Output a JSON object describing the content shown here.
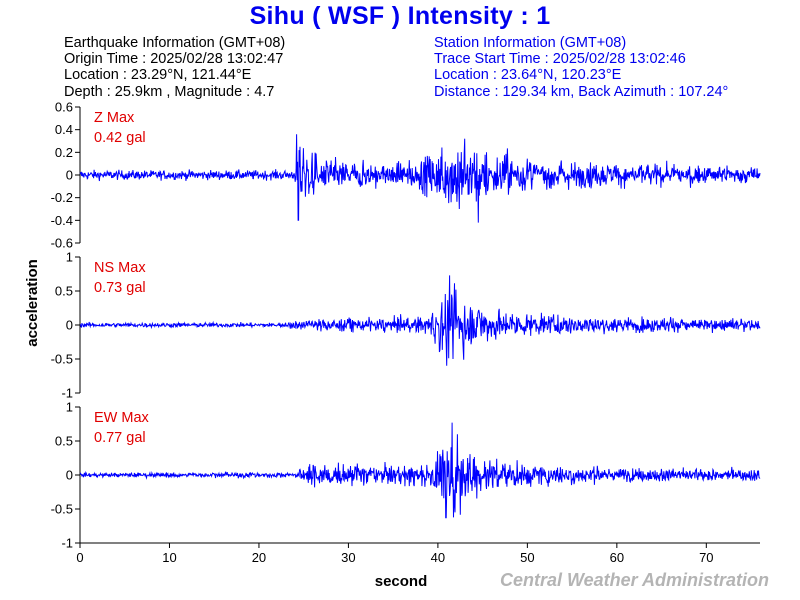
{
  "title": "Sihu  ( WSF )  Intensity : 1",
  "earthquake": {
    "heading": "Earthquake Information  (GMT+08)",
    "origin_time": "Origin Time : 2025/02/28 13:02:47",
    "location": "Location : 23.29°N, 121.44°E",
    "depth_magnitude": "Depth : 25.9km , Magnitude : 4.7"
  },
  "station": {
    "heading": "Station Information  (GMT+08)",
    "trace_start": "Trace Start Time : 2025/02/28 13:02:46",
    "location": "Location : 23.64°N, 120.23°E",
    "distance_azimuth": "Distance : 129.34 km, Back Azimuth : 107.24°"
  },
  "credit": "Central Weather Administration",
  "colors": {
    "title": "#0000ee",
    "trace": "#0000ff",
    "max_label": "#e00000",
    "credit": "#b4b4b4"
  },
  "chart_data": {
    "type": "line",
    "xlabel": "second",
    "ylabel": "acceleration",
    "xlim": [
      0,
      76
    ],
    "x_ticks": [
      0,
      10,
      20,
      30,
      40,
      50,
      60,
      70
    ],
    "grid": false,
    "panels": [
      {
        "name": "Z Max",
        "max_value": "0.42 gal",
        "ylim": [
          -0.6,
          0.6
        ],
        "y_ticks": [
          -0.6,
          -0.4,
          -0.2,
          0,
          0.2,
          0.4,
          0.6
        ],
        "y_tick_labels": [
          "-0.6",
          "-0.4",
          "-0.2",
          "0",
          "0.2",
          "0.4",
          "0.6"
        ],
        "noise": 0.025,
        "envelope": [
          [
            0,
            0.03
          ],
          [
            24.0,
            0.03
          ],
          [
            24.3,
            0.36
          ],
          [
            25.5,
            0.22
          ],
          [
            27,
            0.15
          ],
          [
            30,
            0.11
          ],
          [
            35,
            0.1
          ],
          [
            38,
            0.13
          ],
          [
            40,
            0.2
          ],
          [
            42,
            0.28
          ],
          [
            45,
            0.22
          ],
          [
            50,
            0.15
          ],
          [
            56,
            0.11
          ],
          [
            65,
            0.09
          ],
          [
            76,
            0.07
          ]
        ],
        "peaks": [
          [
            24.2,
            0.36
          ],
          [
            24.4,
            -0.4
          ],
          [
            43,
            0.32
          ],
          [
            44.5,
            -0.42
          ],
          [
            42.4,
            -0.3
          ]
        ]
      },
      {
        "name": "NS Max",
        "max_value": "0.73 gal",
        "ylim": [
          -1,
          1
        ],
        "y_ticks": [
          -1,
          -0.5,
          0,
          0.5,
          1
        ],
        "y_tick_labels": [
          "-1",
          "-0.5",
          "0",
          "0.5",
          "1"
        ],
        "noise": 0.02,
        "envelope": [
          [
            0,
            0.025
          ],
          [
            22,
            0.03
          ],
          [
            24,
            0.06
          ],
          [
            27,
            0.09
          ],
          [
            35,
            0.1
          ],
          [
            39,
            0.13
          ],
          [
            40,
            0.3
          ],
          [
            41,
            0.55
          ],
          [
            42,
            0.45
          ],
          [
            44,
            0.3
          ],
          [
            47,
            0.2
          ],
          [
            52,
            0.14
          ],
          [
            60,
            0.11
          ],
          [
            76,
            0.08
          ]
        ],
        "peaks": [
          [
            41.3,
            0.73
          ],
          [
            41.0,
            -0.6
          ],
          [
            42.0,
            0.52
          ],
          [
            41.7,
            -0.5
          ]
        ]
      },
      {
        "name": "EW Max",
        "max_value": "0.77 gal",
        "ylim": [
          -1,
          1
        ],
        "y_ticks": [
          -1,
          -0.5,
          0,
          0.5,
          1
        ],
        "y_tick_labels": [
          "-1",
          "-0.5",
          "0",
          "0.5",
          "1"
        ],
        "noise": 0.02,
        "envelope": [
          [
            0,
            0.025
          ],
          [
            24,
            0.04
          ],
          [
            25,
            0.15
          ],
          [
            27,
            0.16
          ],
          [
            33,
            0.14
          ],
          [
            38,
            0.15
          ],
          [
            40,
            0.3
          ],
          [
            41.5,
            0.6
          ],
          [
            43,
            0.4
          ],
          [
            46,
            0.22
          ],
          [
            52,
            0.14
          ],
          [
            60,
            0.1
          ],
          [
            76,
            0.08
          ]
        ],
        "peaks": [
          [
            41.6,
            0.77
          ],
          [
            40.9,
            -0.63
          ],
          [
            42.2,
            0.6
          ],
          [
            41.9,
            -0.55
          ]
        ]
      }
    ]
  }
}
